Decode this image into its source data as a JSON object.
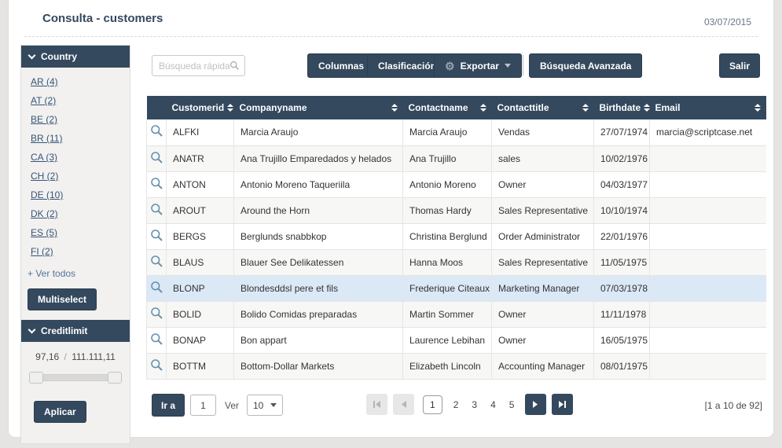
{
  "colors": {
    "navy": "#34495e",
    "highlight_row": "#dbe8f6",
    "link": "#36547a",
    "page_bg": "#e5e4e2"
  },
  "header": {
    "title": "Consulta - customers",
    "date": "03/07/2015"
  },
  "sidebar": {
    "country": {
      "title": "Country",
      "links": [
        "AR (4)",
        "AT (2)",
        "BE (2)",
        "BR (11)",
        "CA (3)",
        "CH (2)",
        "DE (10)",
        "DK (2)",
        "ES (5)",
        "FI (2)"
      ],
      "see_all_label": "+ Ver todos",
      "multiselect_label": "Multiselect"
    },
    "creditlimit": {
      "title": "Creditlimit",
      "min_value": "97,16",
      "separator": "/",
      "max_value": "111.111,11",
      "apply_label": "Aplicar"
    }
  },
  "toolbar": {
    "search_placeholder": "Búsqueda rápida",
    "columns_label": "Columnas",
    "sort_label": "Clasificación",
    "export_label": "Exportar",
    "advanced_search_label": "Búsqueda Avanzada",
    "exit_label": "Salir"
  },
  "table": {
    "columns": [
      "Customerid",
      "Companyname",
      "Contactname",
      "Contacttitle",
      "Birthdate",
      "Email"
    ],
    "highlighted_row_id": "BLONP",
    "rows": [
      {
        "id": "ALFKI",
        "company": "Marcia Araujo",
        "contact": "Marcia Araujo",
        "title": "Vendas",
        "birthdate": "27/07/1974",
        "email": "marcia@scriptcase.net"
      },
      {
        "id": "ANATR",
        "company": "Ana Trujillo Emparedados y helados",
        "contact": "Ana Trujillo",
        "title": "sales",
        "birthdate": "10/02/1976",
        "email": ""
      },
      {
        "id": "ANTON",
        "company": "Antonio Moreno Taqueriila",
        "contact": "Antonio Moreno",
        "title": "Owner",
        "birthdate": "04/03/1977",
        "email": ""
      },
      {
        "id": "AROUT",
        "company": "Around the Horn",
        "contact": "Thomas Hardy",
        "title": "Sales Representative",
        "birthdate": "10/10/1974",
        "email": ""
      },
      {
        "id": "BERGS",
        "company": "Berglunds snabbkop",
        "contact": "Christina Berglund",
        "title": "Order Administrator",
        "birthdate": "22/01/1976",
        "email": ""
      },
      {
        "id": "BLAUS",
        "company": "Blauer See Delikatessen",
        "contact": "Hanna Moos",
        "title": "Sales Representative",
        "birthdate": "11/05/1975",
        "email": ""
      },
      {
        "id": "BLONP",
        "company": "Blondesddsl pere et fils",
        "contact": "Frederique Citeaux",
        "title": "Marketing Manager",
        "birthdate": "07/03/1978",
        "email": ""
      },
      {
        "id": "BOLID",
        "company": "Bolido Comidas preparadas",
        "contact": "Martin Sommer",
        "title": "Owner",
        "birthdate": "11/11/1978",
        "email": ""
      },
      {
        "id": "BONAP",
        "company": "Bon appart",
        "contact": "Laurence Lebihan",
        "title": "Owner",
        "birthdate": "16/05/1975",
        "email": ""
      },
      {
        "id": "BOTTM",
        "company": "Bottom-Dollar Markets",
        "contact": "Elizabeth Lincoln",
        "title": "Accounting Manager",
        "birthdate": "08/01/1975",
        "email": ""
      }
    ]
  },
  "pagination": {
    "goto_label": "Ir a",
    "goto_value": "1",
    "view_label": "Ver",
    "page_size": "10",
    "pages": [
      "1",
      "2",
      "3",
      "4",
      "5"
    ],
    "current_page": "1",
    "summary": "[1 a 10 de 92]"
  }
}
